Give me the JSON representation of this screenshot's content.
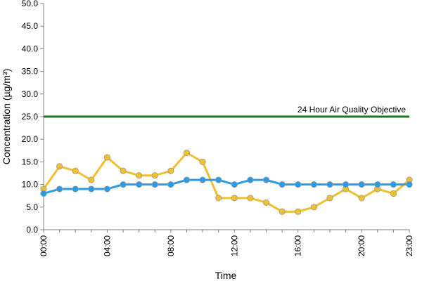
{
  "chart_data": {
    "type": "line",
    "title": "",
    "xlabel": "Time",
    "ylabel": "Concentration (µg/m³)",
    "ylim": [
      0,
      50
    ],
    "yticks": [
      "0.0",
      "5.0",
      "10.0",
      "15.0",
      "20.0",
      "25.0",
      "30.0",
      "35.0",
      "40.0",
      "45.0",
      "50.0"
    ],
    "x": [
      "00:00",
      "01:00",
      "02:00",
      "03:00",
      "04:00",
      "05:00",
      "06:00",
      "07:00",
      "08:00",
      "09:00",
      "10:00",
      "11:00",
      "12:00",
      "13:00",
      "14:00",
      "15:00",
      "16:00",
      "17:00",
      "18:00",
      "19:00",
      "20:00",
      "21:00",
      "22:00",
      "23:00"
    ],
    "xtick_labels": [
      "00:00",
      "04:00",
      "08:00",
      "12:00",
      "16:00",
      "20:00",
      "23:00"
    ],
    "grid": false,
    "legend": "none",
    "series": [
      {
        "color": "#F0C030",
        "values": [
          9,
          14,
          13,
          11,
          16,
          13,
          12,
          12,
          13,
          17,
          15,
          7,
          7,
          7,
          6,
          4,
          4,
          5,
          7,
          9,
          7,
          9,
          8,
          11
        ]
      },
      {
        "color": "#2A9BE8",
        "values": [
          8,
          9,
          9,
          9,
          9,
          10,
          10,
          10,
          10,
          11,
          11,
          11,
          10,
          11,
          11,
          10,
          10,
          10,
          10,
          10,
          10,
          10,
          10,
          10
        ]
      }
    ],
    "reference_line": {
      "label": "24 Hour Air Quality Objective",
      "value": 25,
      "color": "#1A7A1A"
    }
  }
}
